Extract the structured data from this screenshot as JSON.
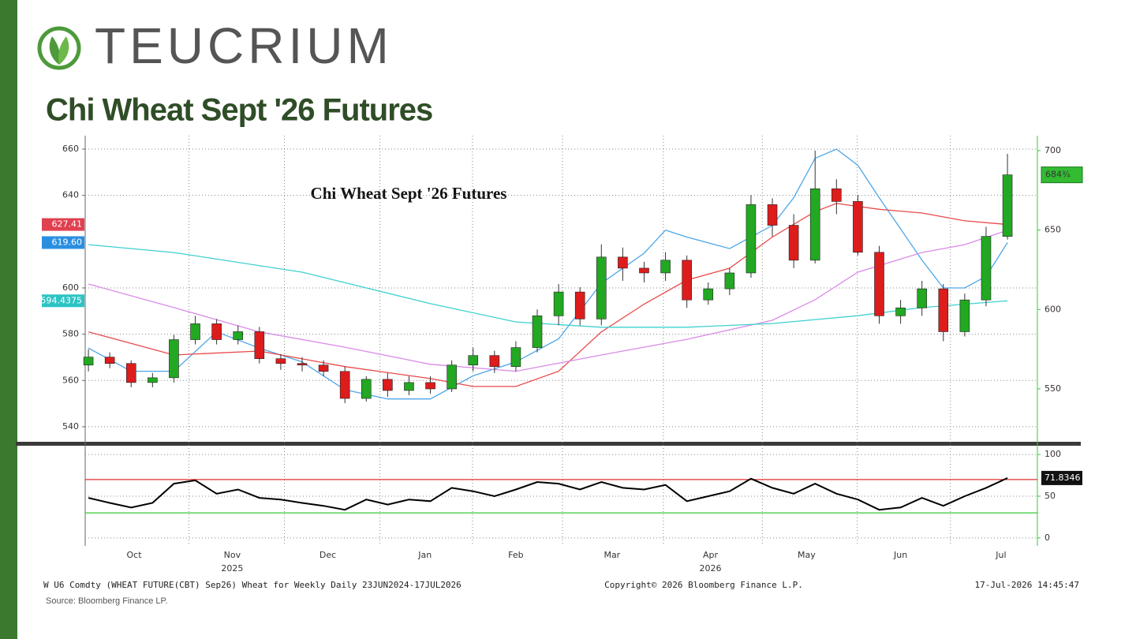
{
  "logo": {
    "text": "TEUCRIUM"
  },
  "title": "Chi Wheat Sept '26 Futures",
  "chart_data": [
    {
      "type": "candlestick",
      "title": "Chi Wheat Sept '26 Futures",
      "open": [
        565,
        570,
        566,
        554,
        557,
        581,
        591,
        581,
        586,
        569,
        566,
        565,
        561,
        544,
        556,
        549,
        554,
        550,
        565,
        571,
        564,
        576,
        596,
        611,
        594,
        633,
        626,
        623,
        631,
        606,
        613,
        623,
        666,
        653,
        631,
        676,
        668,
        636,
        596,
        601,
        613,
        586,
        606,
        646
      ],
      "high": [
        575,
        573,
        568,
        560,
        584,
        596,
        594,
        590,
        589,
        572,
        570,
        568,
        564,
        558,
        560,
        558,
        558,
        568,
        576,
        574,
        580,
        600,
        616,
        614,
        641,
        639,
        630,
        636,
        634,
        617,
        626,
        672,
        670,
        660,
        700,
        682,
        672,
        640,
        606,
        618,
        616,
        610,
        652,
        698
      ],
      "low": [
        561,
        563,
        551,
        551,
        554,
        578,
        578,
        578,
        566,
        562,
        561,
        558,
        541,
        542,
        545,
        546,
        547,
        548,
        561,
        560,
        561,
        573,
        590,
        590,
        590,
        618,
        617,
        618,
        601,
        603,
        609,
        620,
        646,
        626,
        629,
        660,
        634,
        591,
        591,
        596,
        580,
        583,
        602,
        644
      ],
      "close": [
        570,
        566,
        554,
        557,
        581,
        591,
        581,
        586,
        569,
        566,
        565,
        561,
        544,
        556,
        549,
        554,
        550,
        565,
        571,
        564,
        576,
        596,
        611,
        594,
        633,
        626,
        623,
        631,
        606,
        613,
        623,
        666,
        653,
        631,
        676,
        668,
        636,
        596,
        601,
        613,
        586,
        606,
        646,
        684.75
      ],
      "up_color": "#22a822",
      "down_color": "#dd1c1c",
      "xlim": [
        -0.15,
        44.4
      ],
      "xticks": [
        {
          "value": 2.14,
          "label": "Oct"
        },
        {
          "value": 6.73,
          "label": "Nov"
        },
        {
          "value": 11.2,
          "label": "Dec"
        },
        {
          "value": 15.75,
          "label": "Jan"
        },
        {
          "value": 20.0,
          "label": "Feb"
        },
        {
          "value": 24.5,
          "label": "Mar"
        },
        {
          "value": 29.1,
          "label": "Apr"
        },
        {
          "value": 33.6,
          "label": "May"
        },
        {
          "value": 38.0,
          "label": "Jun"
        },
        {
          "value": 42.7,
          "label": "Jul"
        }
      ],
      "year_labels": [
        {
          "value": 6.73,
          "label": "2025"
        },
        {
          "value": 29.1,
          "label": "2026"
        }
      ],
      "month_starts": [
        4.7,
        9.17,
        13.64,
        17.97,
        22.18,
        26.9,
        31.53,
        35.97,
        40.33
      ],
      "ylim": [
        533.5,
        665.8
      ],
      "yticks": [
        540,
        560,
        580,
        600,
        640,
        660
      ],
      "y2lim": [
        516.7,
        709.4
      ],
      "y2ticks": [
        550,
        600,
        650,
        700
      ],
      "grid": true,
      "last_price": {
        "value": 684.75,
        "label": "684¾"
      },
      "series": [
        {
          "color": "#4da6e8",
          "x": [
            0,
            2,
            4,
            6,
            8,
            10,
            12,
            14,
            16,
            18,
            20,
            22,
            24,
            26,
            27,
            28,
            30,
            32,
            33,
            34,
            35,
            36,
            37,
            39,
            40,
            41,
            42,
            43
          ],
          "values": [
            574,
            564,
            564,
            581,
            574,
            568,
            556,
            552,
            552,
            562,
            568,
            578,
            602,
            615,
            625,
            622,
            617,
            627,
            639,
            656,
            660,
            653,
            639,
            612,
            600,
            600,
            605,
            619.6
          ],
          "last_label": {
            "value": 619.6,
            "label": "619.60"
          },
          "label_color": "#2b8fe0"
        },
        {
          "color": "#e84a4a",
          "x": [
            0,
            4,
            8,
            12,
            16,
            18,
            20,
            22,
            24,
            26,
            28,
            30,
            32,
            34,
            35,
            37,
            39,
            41,
            43
          ],
          "values": [
            581,
            571,
            572.7,
            566,
            560.8,
            557.4,
            557.4,
            564,
            581,
            593,
            603.4,
            608.5,
            622,
            633,
            636.5,
            634,
            632.4,
            629,
            627.41
          ],
          "last_label": 627.41,
          "label_color": "#e04050"
        },
        {
          "color": "#d98be6",
          "x": [
            0,
            4,
            8,
            12,
            16,
            20,
            24,
            28,
            32,
            34,
            36,
            39,
            41,
            43
          ],
          "values": [
            601.7,
            591.5,
            581,
            574.4,
            567,
            564,
            571,
            577.8,
            586,
            594.9,
            606.8,
            615.3,
            618.7,
            624.9
          ]
        },
        {
          "color": "#3fd0d0",
          "x": [
            0,
            4,
            10,
            16,
            20,
            24,
            28,
            32,
            36,
            39,
            43
          ],
          "values": [
            618.7,
            615.3,
            606.8,
            593.2,
            585.3,
            583,
            583,
            584.6,
            588,
            591.5,
            594.4375
          ],
          "last_label": 594.4375,
          "label_color": "#2cc4c4"
        }
      ]
    },
    {
      "type": "line",
      "color": "#000000",
      "values": [
        48,
        42,
        36.5,
        42,
        65,
        69,
        53,
        58,
        48,
        46,
        42,
        38.5,
        33.7,
        46,
        40,
        46,
        44,
        60,
        56,
        50,
        58,
        67,
        65,
        58,
        67,
        60,
        58,
        63.5,
        44,
        50,
        56,
        71,
        60,
        53,
        65,
        53,
        46,
        33.7,
        36.5,
        48,
        38.5,
        50,
        60,
        71.8346
      ],
      "xlim": [
        -0.15,
        44.4
      ],
      "ylim": [
        -9.6,
        107.7
      ],
      "yticks": [
        0,
        50,
        100
      ],
      "reference_lines": [
        {
          "value": 70,
          "color": "#e03030"
        },
        {
          "value": 30,
          "color": "#33cc33"
        }
      ],
      "last_label": 71.8346
    }
  ],
  "footer": {
    "left": "W U6 Comdty (WHEAT FUTURE(CBT) Sep26) Wheat for Weekly Daily 23JUN2024-17JUL2026",
    "center": "Copyright© 2026 Bloomberg Finance L.P.",
    "right": "17-Jul-2026 14:45:47",
    "source": "Source: Bloomberg Finance LP."
  }
}
